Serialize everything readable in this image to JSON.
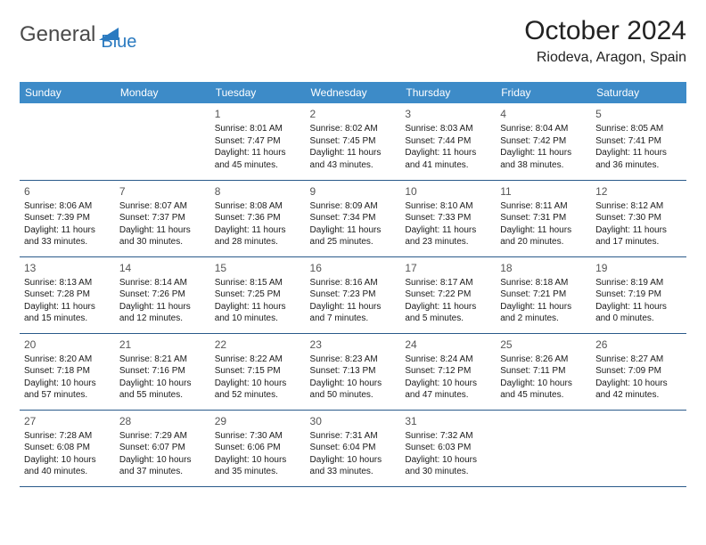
{
  "brand": {
    "part1": "General",
    "part2": "Blue"
  },
  "title": "October 2024",
  "location": "Riodeva, Aragon, Spain",
  "colors": {
    "header_bg": "#3d8bc8",
    "header_text": "#ffffff",
    "row_border": "#2a5a8a",
    "brand_blue": "#2a7ac0",
    "brand_gray": "#4a4a4a",
    "text": "#1a1a1a",
    "background": "#ffffff"
  },
  "daynames": [
    "Sunday",
    "Monday",
    "Tuesday",
    "Wednesday",
    "Thursday",
    "Friday",
    "Saturday"
  ],
  "grid": [
    [
      null,
      null,
      {
        "n": "1",
        "sr": "Sunrise: 8:01 AM",
        "ss": "Sunset: 7:47 PM",
        "d1": "Daylight: 11 hours",
        "d2": "and 45 minutes."
      },
      {
        "n": "2",
        "sr": "Sunrise: 8:02 AM",
        "ss": "Sunset: 7:45 PM",
        "d1": "Daylight: 11 hours",
        "d2": "and 43 minutes."
      },
      {
        "n": "3",
        "sr": "Sunrise: 8:03 AM",
        "ss": "Sunset: 7:44 PM",
        "d1": "Daylight: 11 hours",
        "d2": "and 41 minutes."
      },
      {
        "n": "4",
        "sr": "Sunrise: 8:04 AM",
        "ss": "Sunset: 7:42 PM",
        "d1": "Daylight: 11 hours",
        "d2": "and 38 minutes."
      },
      {
        "n": "5",
        "sr": "Sunrise: 8:05 AM",
        "ss": "Sunset: 7:41 PM",
        "d1": "Daylight: 11 hours",
        "d2": "and 36 minutes."
      }
    ],
    [
      {
        "n": "6",
        "sr": "Sunrise: 8:06 AM",
        "ss": "Sunset: 7:39 PM",
        "d1": "Daylight: 11 hours",
        "d2": "and 33 minutes."
      },
      {
        "n": "7",
        "sr": "Sunrise: 8:07 AM",
        "ss": "Sunset: 7:37 PM",
        "d1": "Daylight: 11 hours",
        "d2": "and 30 minutes."
      },
      {
        "n": "8",
        "sr": "Sunrise: 8:08 AM",
        "ss": "Sunset: 7:36 PM",
        "d1": "Daylight: 11 hours",
        "d2": "and 28 minutes."
      },
      {
        "n": "9",
        "sr": "Sunrise: 8:09 AM",
        "ss": "Sunset: 7:34 PM",
        "d1": "Daylight: 11 hours",
        "d2": "and 25 minutes."
      },
      {
        "n": "10",
        "sr": "Sunrise: 8:10 AM",
        "ss": "Sunset: 7:33 PM",
        "d1": "Daylight: 11 hours",
        "d2": "and 23 minutes."
      },
      {
        "n": "11",
        "sr": "Sunrise: 8:11 AM",
        "ss": "Sunset: 7:31 PM",
        "d1": "Daylight: 11 hours",
        "d2": "and 20 minutes."
      },
      {
        "n": "12",
        "sr": "Sunrise: 8:12 AM",
        "ss": "Sunset: 7:30 PM",
        "d1": "Daylight: 11 hours",
        "d2": "and 17 minutes."
      }
    ],
    [
      {
        "n": "13",
        "sr": "Sunrise: 8:13 AM",
        "ss": "Sunset: 7:28 PM",
        "d1": "Daylight: 11 hours",
        "d2": "and 15 minutes."
      },
      {
        "n": "14",
        "sr": "Sunrise: 8:14 AM",
        "ss": "Sunset: 7:26 PM",
        "d1": "Daylight: 11 hours",
        "d2": "and 12 minutes."
      },
      {
        "n": "15",
        "sr": "Sunrise: 8:15 AM",
        "ss": "Sunset: 7:25 PM",
        "d1": "Daylight: 11 hours",
        "d2": "and 10 minutes."
      },
      {
        "n": "16",
        "sr": "Sunrise: 8:16 AM",
        "ss": "Sunset: 7:23 PM",
        "d1": "Daylight: 11 hours",
        "d2": "and 7 minutes."
      },
      {
        "n": "17",
        "sr": "Sunrise: 8:17 AM",
        "ss": "Sunset: 7:22 PM",
        "d1": "Daylight: 11 hours",
        "d2": "and 5 minutes."
      },
      {
        "n": "18",
        "sr": "Sunrise: 8:18 AM",
        "ss": "Sunset: 7:21 PM",
        "d1": "Daylight: 11 hours",
        "d2": "and 2 minutes."
      },
      {
        "n": "19",
        "sr": "Sunrise: 8:19 AM",
        "ss": "Sunset: 7:19 PM",
        "d1": "Daylight: 11 hours",
        "d2": "and 0 minutes."
      }
    ],
    [
      {
        "n": "20",
        "sr": "Sunrise: 8:20 AM",
        "ss": "Sunset: 7:18 PM",
        "d1": "Daylight: 10 hours",
        "d2": "and 57 minutes."
      },
      {
        "n": "21",
        "sr": "Sunrise: 8:21 AM",
        "ss": "Sunset: 7:16 PM",
        "d1": "Daylight: 10 hours",
        "d2": "and 55 minutes."
      },
      {
        "n": "22",
        "sr": "Sunrise: 8:22 AM",
        "ss": "Sunset: 7:15 PM",
        "d1": "Daylight: 10 hours",
        "d2": "and 52 minutes."
      },
      {
        "n": "23",
        "sr": "Sunrise: 8:23 AM",
        "ss": "Sunset: 7:13 PM",
        "d1": "Daylight: 10 hours",
        "d2": "and 50 minutes."
      },
      {
        "n": "24",
        "sr": "Sunrise: 8:24 AM",
        "ss": "Sunset: 7:12 PM",
        "d1": "Daylight: 10 hours",
        "d2": "and 47 minutes."
      },
      {
        "n": "25",
        "sr": "Sunrise: 8:26 AM",
        "ss": "Sunset: 7:11 PM",
        "d1": "Daylight: 10 hours",
        "d2": "and 45 minutes."
      },
      {
        "n": "26",
        "sr": "Sunrise: 8:27 AM",
        "ss": "Sunset: 7:09 PM",
        "d1": "Daylight: 10 hours",
        "d2": "and 42 minutes."
      }
    ],
    [
      {
        "n": "27",
        "sr": "Sunrise: 7:28 AM",
        "ss": "Sunset: 6:08 PM",
        "d1": "Daylight: 10 hours",
        "d2": "and 40 minutes."
      },
      {
        "n": "28",
        "sr": "Sunrise: 7:29 AM",
        "ss": "Sunset: 6:07 PM",
        "d1": "Daylight: 10 hours",
        "d2": "and 37 minutes."
      },
      {
        "n": "29",
        "sr": "Sunrise: 7:30 AM",
        "ss": "Sunset: 6:06 PM",
        "d1": "Daylight: 10 hours",
        "d2": "and 35 minutes."
      },
      {
        "n": "30",
        "sr": "Sunrise: 7:31 AM",
        "ss": "Sunset: 6:04 PM",
        "d1": "Daylight: 10 hours",
        "d2": "and 33 minutes."
      },
      {
        "n": "31",
        "sr": "Sunrise: 7:32 AM",
        "ss": "Sunset: 6:03 PM",
        "d1": "Daylight: 10 hours",
        "d2": "and 30 minutes."
      },
      null,
      null
    ]
  ]
}
